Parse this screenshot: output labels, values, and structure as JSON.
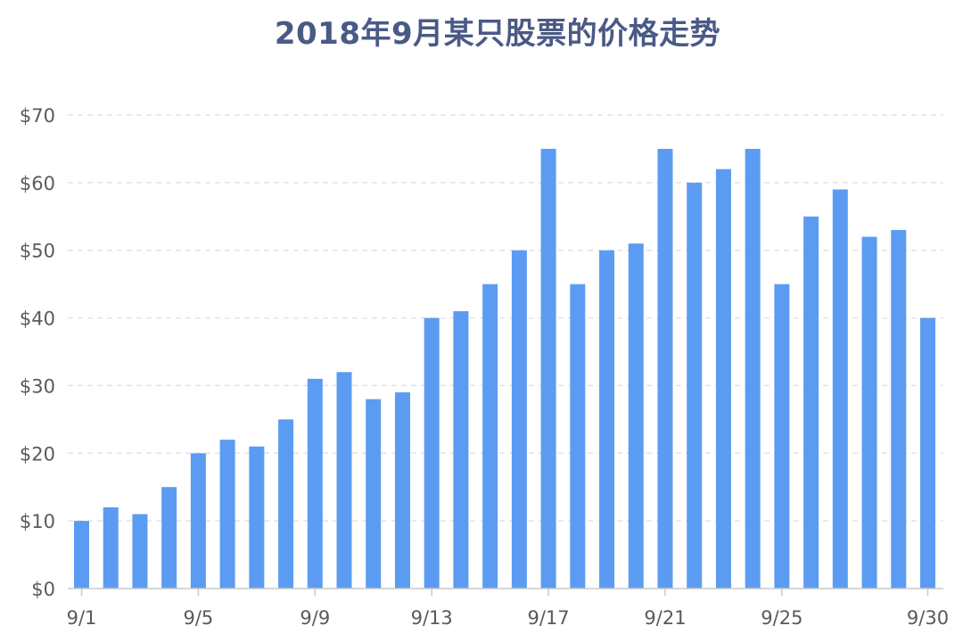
{
  "chart_data": {
    "type": "bar",
    "title": "2018年9月某只股票的价格走势",
    "xlabel": "",
    "ylabel": "",
    "categories": [
      "9/1",
      "9/2",
      "9/3",
      "9/4",
      "9/5",
      "9/6",
      "9/7",
      "9/8",
      "9/9",
      "9/10",
      "9/11",
      "9/12",
      "9/13",
      "9/14",
      "9/15",
      "9/16",
      "9/17",
      "9/18",
      "9/19",
      "9/20",
      "9/21",
      "9/22",
      "9/23",
      "9/24",
      "9/25",
      "9/26",
      "9/27",
      "9/28",
      "9/29",
      "9/30"
    ],
    "values": [
      10,
      12,
      11,
      15,
      20,
      22,
      21,
      25,
      31,
      32,
      28,
      29,
      40,
      41,
      45,
      50,
      65,
      45,
      50,
      51,
      65,
      60,
      62,
      65,
      45,
      55,
      59,
      52,
      53,
      40
    ],
    "x_tick_labels": [
      "9/1",
      "9/5",
      "9/9",
      "9/13",
      "9/17",
      "9/21",
      "9/25",
      "9/30"
    ],
    "y_tick_labels": [
      "$0",
      "$10",
      "$20",
      "$30",
      "$40",
      "$50",
      "$60",
      "$70"
    ],
    "ylim": [
      0,
      70
    ],
    "y_ticks": [
      0,
      10,
      20,
      30,
      40,
      50,
      60,
      70
    ],
    "grid": true,
    "colors": {
      "bar": "#5b9cf2",
      "title": "#4a5a86",
      "grid": "#e3e3e3",
      "axis": "#c8c8c8",
      "tick_text": "#5a5a5a"
    }
  }
}
